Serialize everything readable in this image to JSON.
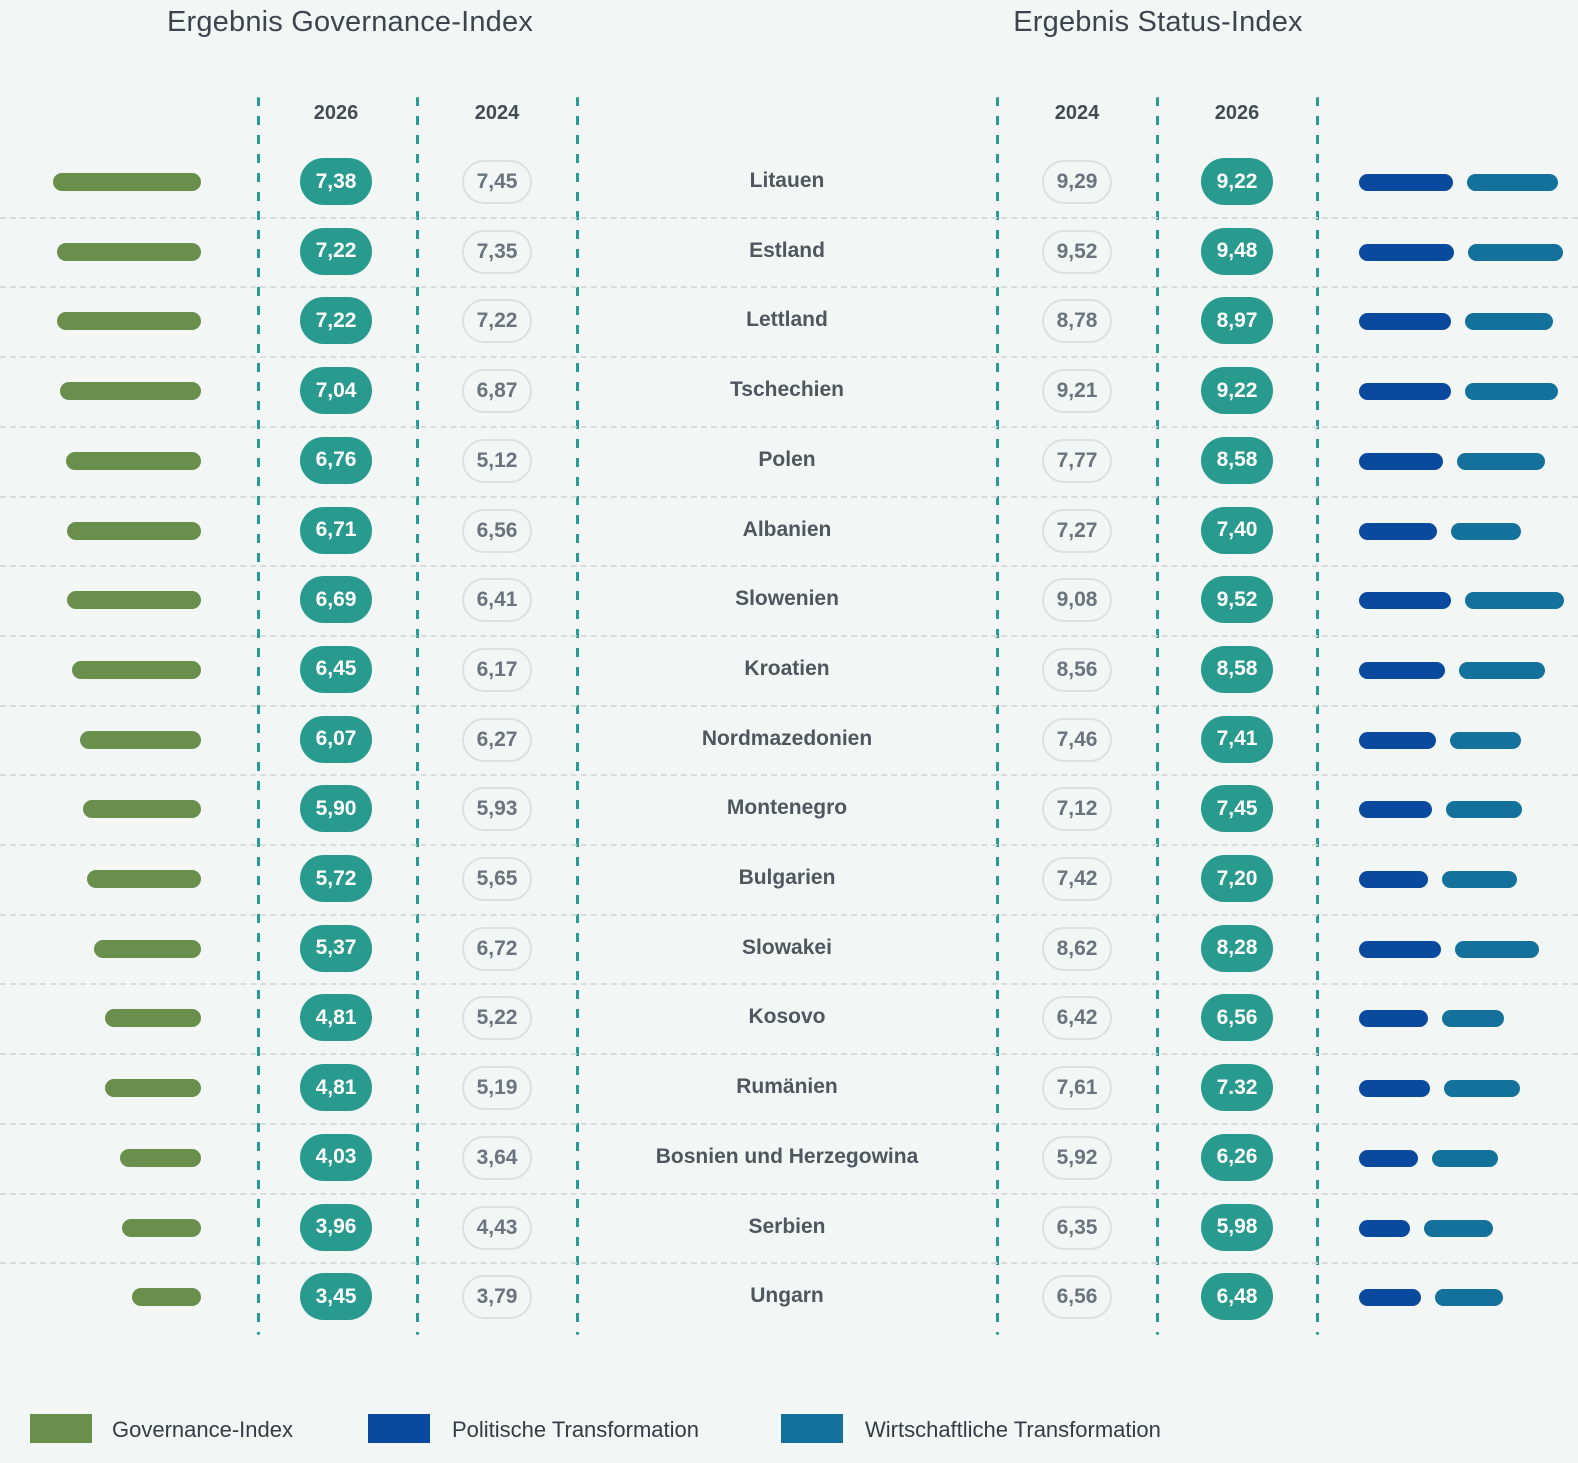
{
  "titles": {
    "governance": "Ergebnis Governance-Index",
    "status": "Ergebnis Status-Index"
  },
  "columns": {
    "left": [
      "2026",
      "2024"
    ],
    "right": [
      "2024",
      "2026"
    ]
  },
  "legend": [
    {
      "label": "Governance-Index",
      "color": "#6a8f4d"
    },
    {
      "label": "Politische Transformation",
      "color": "#0a4a9e"
    },
    {
      "label": "Wirtschaftliche Transformation",
      "color": "#14719b"
    }
  ],
  "colors": {
    "background": "#f2f7f5",
    "governance_green": "#6a8f4d",
    "political_blue": "#0a4a9e",
    "economic_steel_blue": "#14719b",
    "pill_teal": "#289a8e",
    "divider_teal": "#2a9a94",
    "separator_gray": "#d8dddc"
  },
  "chart_data": {
    "type": "bar",
    "description": "BTI-style comparison: left bars = Governance-Index 2026 (green, right-aligned), pills show 2026/2024 Governance-Index and 2024/2026 Status-Index values; right bars = Politische Transformation (dark blue) and Wirtschaftliche Transformation (steel blue), lengths estimated from pixels (no numeric labels shown), Status-Index = mean of the two.",
    "value_range": [
      0,
      10
    ],
    "rows": [
      {
        "country": "Litauen",
        "gov2026": "7,38",
        "gov2024": "7,45",
        "status2024": "9,29",
        "status2026": "9,22",
        "gov": 7.38,
        "pol": 9.4,
        "eco": 9.05
      },
      {
        "country": "Estland",
        "gov2026": "7,22",
        "gov2024": "7,35",
        "status2024": "9,52",
        "status2026": "9,48",
        "gov": 7.22,
        "pol": 9.5,
        "eco": 9.45
      },
      {
        "country": "Lettland",
        "gov2026": "7,22",
        "gov2024": "7,22",
        "status2024": "8,78",
        "status2026": "8,97",
        "gov": 7.22,
        "pol": 9.15,
        "eco": 8.8
      },
      {
        "country": "Tschechien",
        "gov2026": "7,04",
        "gov2024": "6,87",
        "status2024": "9,21",
        "status2026": "9,22",
        "gov": 7.04,
        "pol": 9.2,
        "eco": 9.25
      },
      {
        "country": "Polen",
        "gov2026": "6,76",
        "gov2024": "5,12",
        "status2024": "7,77",
        "status2026": "8,58",
        "gov": 6.76,
        "pol": 8.4,
        "eco": 8.75
      },
      {
        "country": "Albanien",
        "gov2026": "6,71",
        "gov2024": "6,56",
        "status2024": "7,27",
        "status2026": "7,40",
        "gov": 6.71,
        "pol": 7.75,
        "eco": 7.05
      },
      {
        "country": "Slowenien",
        "gov2026": "6,69",
        "gov2024": "6,41",
        "status2024": "9,08",
        "status2026": "9,52",
        "gov": 6.69,
        "pol": 9.2,
        "eco": 9.85
      },
      {
        "country": "Kroatien",
        "gov2026": "6,45",
        "gov2024": "6,17",
        "status2024": "8,56",
        "status2026": "8,58",
        "gov": 6.45,
        "pol": 8.55,
        "eco": 8.6
      },
      {
        "country": "Nordmazedonien",
        "gov2026": "6,07",
        "gov2024": "6,27",
        "status2024": "7,46",
        "status2026": "7,41",
        "gov": 6.07,
        "pol": 7.65,
        "eco": 7.15
      },
      {
        "country": "Montenegro",
        "gov2026": "5,90",
        "gov2024": "5,93",
        "status2024": "7,12",
        "status2026": "7,45",
        "gov": 5.9,
        "pol": 7.3,
        "eco": 7.6
      },
      {
        "country": "Bulgarien",
        "gov2026": "5,72",
        "gov2024": "5,65",
        "status2024": "7,42",
        "status2026": "7,20",
        "gov": 5.72,
        "pol": 6.9,
        "eco": 7.5
      },
      {
        "country": "Slowakei",
        "gov2026": "5,37",
        "gov2024": "6,72",
        "status2024": "8,62",
        "status2026": "8,28",
        "gov": 5.37,
        "pol": 8.2,
        "eco": 8.35
      },
      {
        "country": "Kosovo",
        "gov2026": "4,81",
        "gov2024": "5,22",
        "status2024": "6,42",
        "status2026": "6,56",
        "gov": 4.81,
        "pol": 6.9,
        "eco": 6.2
      },
      {
        "country": "Rumänien",
        "gov2026": "4,81",
        "gov2024": "5,19",
        "status2024": "7,61",
        "status2026": "7.32",
        "gov": 4.81,
        "pol": 7.1,
        "eco": 7.55
      },
      {
        "country": "Bosnien und Herzegowina",
        "gov2026": "4,03",
        "gov2024": "3,64",
        "status2024": "5,92",
        "status2026": "6,26",
        "gov": 4.03,
        "pol": 5.9,
        "eco": 6.6
      },
      {
        "country": "Serbien",
        "gov2026": "3,96",
        "gov2024": "4,43",
        "status2024": "6,35",
        "status2026": "5,98",
        "gov": 3.96,
        "pol": 5.1,
        "eco": 6.85
      },
      {
        "country": "Ungarn",
        "gov2026": "3,45",
        "gov2024": "3,79",
        "status2024": "6,56",
        "status2026": "6,48",
        "gov": 3.45,
        "pol": 6.2,
        "eco": 6.75
      }
    ]
  }
}
